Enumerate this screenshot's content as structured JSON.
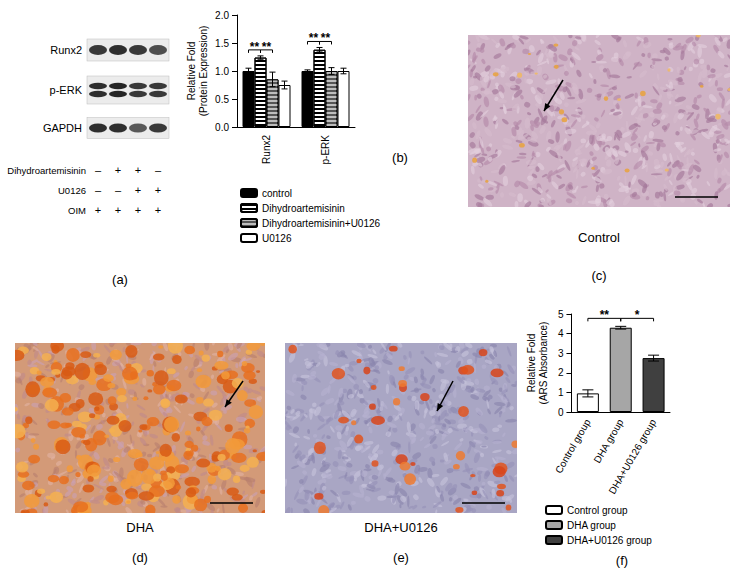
{
  "panel_captions": [
    "(a)",
    "(b)",
    "(c)",
    "(d)",
    "(e)",
    "(f)"
  ],
  "blot": {
    "bands": [
      "Runx2",
      "p-ERK",
      "GAPDH"
    ],
    "treatments": [
      {
        "label": "Dihydroartemisinin",
        "signs": [
          "–",
          "+",
          "+",
          "–"
        ]
      },
      {
        "label": "U0126",
        "signs": [
          "–",
          "–",
          "+",
          "+"
        ]
      },
      {
        "label": "OIM",
        "signs": [
          "+",
          "+",
          "+",
          "+"
        ]
      }
    ]
  },
  "micrographs": [
    {
      "label": "Control"
    },
    {
      "label": "DHA"
    },
    {
      "label": "DHA+U0126"
    }
  ],
  "chart_data": [
    {
      "type": "bar",
      "categories": [
        "Runx2",
        "p-ERK"
      ],
      "ylabel": "Relative Fold\n(Protein Expression)",
      "ylim": [
        0,
        2
      ],
      "yticks": [
        {
          "value": 0,
          "label": "0.0"
        },
        {
          "value": 0.5,
          "label": "0.5"
        },
        {
          "value": 1,
          "label": "1.0"
        },
        {
          "value": 1.5,
          "label": "1.5"
        },
        {
          "value": 2,
          "label": "2.0"
        }
      ],
      "legend": "bottom",
      "series": [
        {
          "name": "control",
          "color": "#000000",
          "values": [
            1.0,
            1.0
          ],
          "errors": [
            0.05,
            0.02
          ]
        },
        {
          "name": "Dihydroartemisinin",
          "color": "#ffffff",
          "values": [
            1.24,
            1.38
          ],
          "errors": [
            0.03,
            0.04
          ]
        },
        {
          "name": "Dihydroartemisinin+U0126",
          "color": "#555555",
          "values": [
            0.85,
            1.0
          ],
          "errors": [
            0.13,
            0.06
          ]
        },
        {
          "name": "U0126",
          "color": "#ffffff",
          "values": [
            0.75,
            1.0
          ],
          "errors": [
            0.07,
            0.05
          ]
        }
      ],
      "annotations": [
        {
          "category": "Runx2",
          "between": [
            "control",
            "Dihydroartemisinin"
          ],
          "text": "**"
        },
        {
          "category": "Runx2",
          "between": [
            "Dihydroartemisinin",
            "Dihydroartemisinin+U0126"
          ],
          "text": "**"
        },
        {
          "category": "p-ERK",
          "between": [
            "control",
            "Dihydroartemisinin"
          ],
          "text": "**"
        },
        {
          "category": "p-ERK",
          "between": [
            "Dihydroartemisinin",
            "Dihydroartemisinin+U0126"
          ],
          "text": "**"
        }
      ]
    },
    {
      "type": "bar",
      "categories": [
        "Control group",
        "DHA group",
        "DHA+U0126 group"
      ],
      "values": [
        0.95,
        4.3,
        2.75
      ],
      "errors": [
        0.18,
        0.07,
        0.15
      ],
      "colors": [
        "#ffffff",
        "#a6a6a6",
        "#404040"
      ],
      "ylabel": "Relative Fold\n(ARS Absorbance)",
      "ylim": [
        0,
        5
      ],
      "yticks": [
        0,
        1,
        2,
        3,
        4,
        5
      ],
      "legend": "bottom",
      "annotations": [
        {
          "between": [
            "Control group",
            "DHA group"
          ],
          "text": "**"
        },
        {
          "between": [
            "DHA group",
            "DHA+U0126 group"
          ],
          "text": "*"
        }
      ]
    }
  ]
}
